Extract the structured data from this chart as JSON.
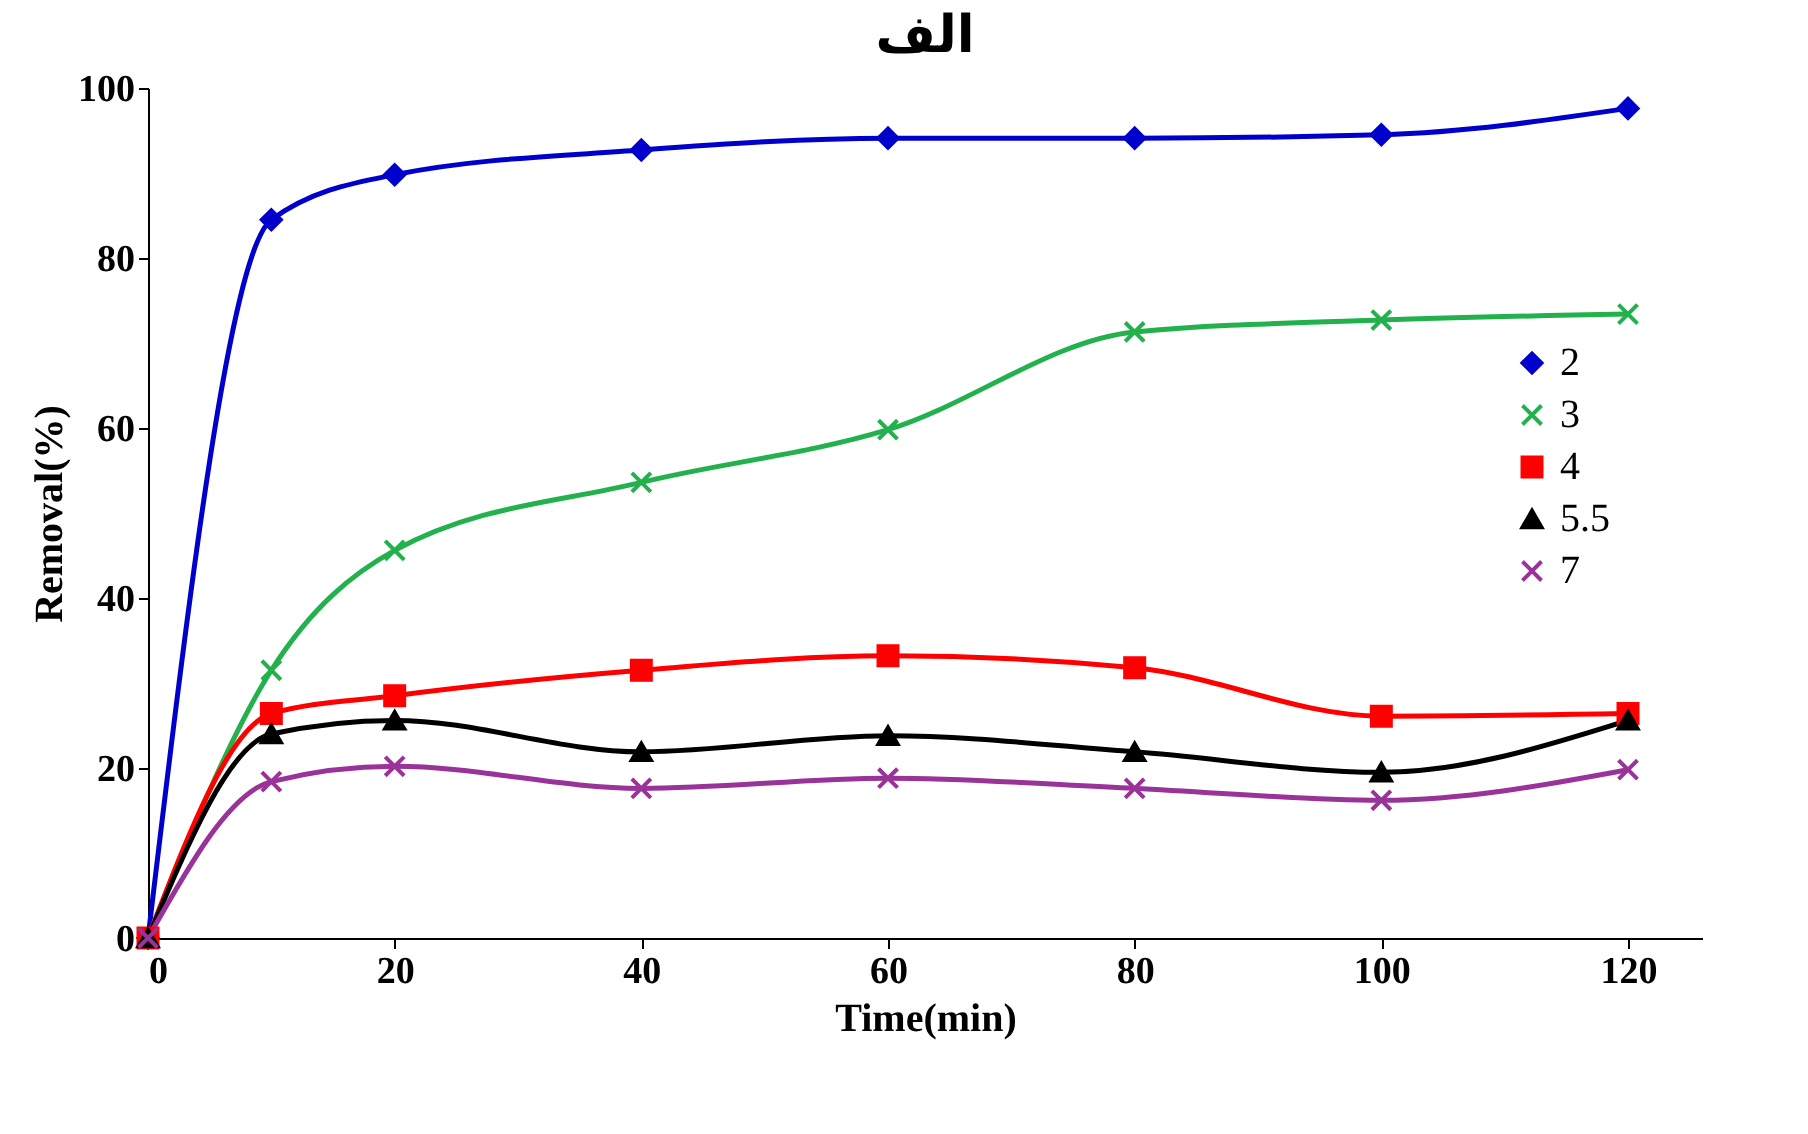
{
  "chart_data": {
    "type": "line",
    "title": "الف",
    "xlabel": "Time(min)",
    "ylabel": "Removal(%)",
    "x": [
      0,
      10,
      20,
      40,
      60,
      80,
      100,
      120
    ],
    "xlim": [
      0,
      126
    ],
    "xticks": [
      0,
      20,
      40,
      60,
      80,
      100,
      120
    ],
    "ylim": [
      0,
      100
    ],
    "yticks": [
      0,
      20,
      40,
      60,
      80,
      100
    ],
    "grid": false,
    "legend": "right",
    "series": [
      {
        "name": "2",
        "color": "#0000cc",
        "marker": "diamond",
        "values": [
          0,
          84.5,
          89.8,
          92.7,
          94.1,
          94.1,
          94.5,
          97.6
        ]
      },
      {
        "name": "3",
        "color": "#22b14c",
        "marker": "cross",
        "values": [
          0,
          31.5,
          45.6,
          53.6,
          59.8,
          71.3,
          72.7,
          73.4
        ]
      },
      {
        "name": "4",
        "color": "#ff0000",
        "marker": "square",
        "values": [
          0,
          26.4,
          28.5,
          31.5,
          33.2,
          31.8,
          26.1,
          26.4
        ]
      },
      {
        "name": "5.5",
        "color": "#000000",
        "marker": "triangle",
        "values": [
          0,
          24,
          25.6,
          21.9,
          23.8,
          21.9,
          19.5,
          25.6
        ]
      },
      {
        "name": "7",
        "color": "#993399",
        "marker": "cross",
        "values": [
          0,
          18.4,
          20.2,
          17.6,
          18.8,
          17.6,
          16.2,
          19.8
        ]
      }
    ]
  }
}
